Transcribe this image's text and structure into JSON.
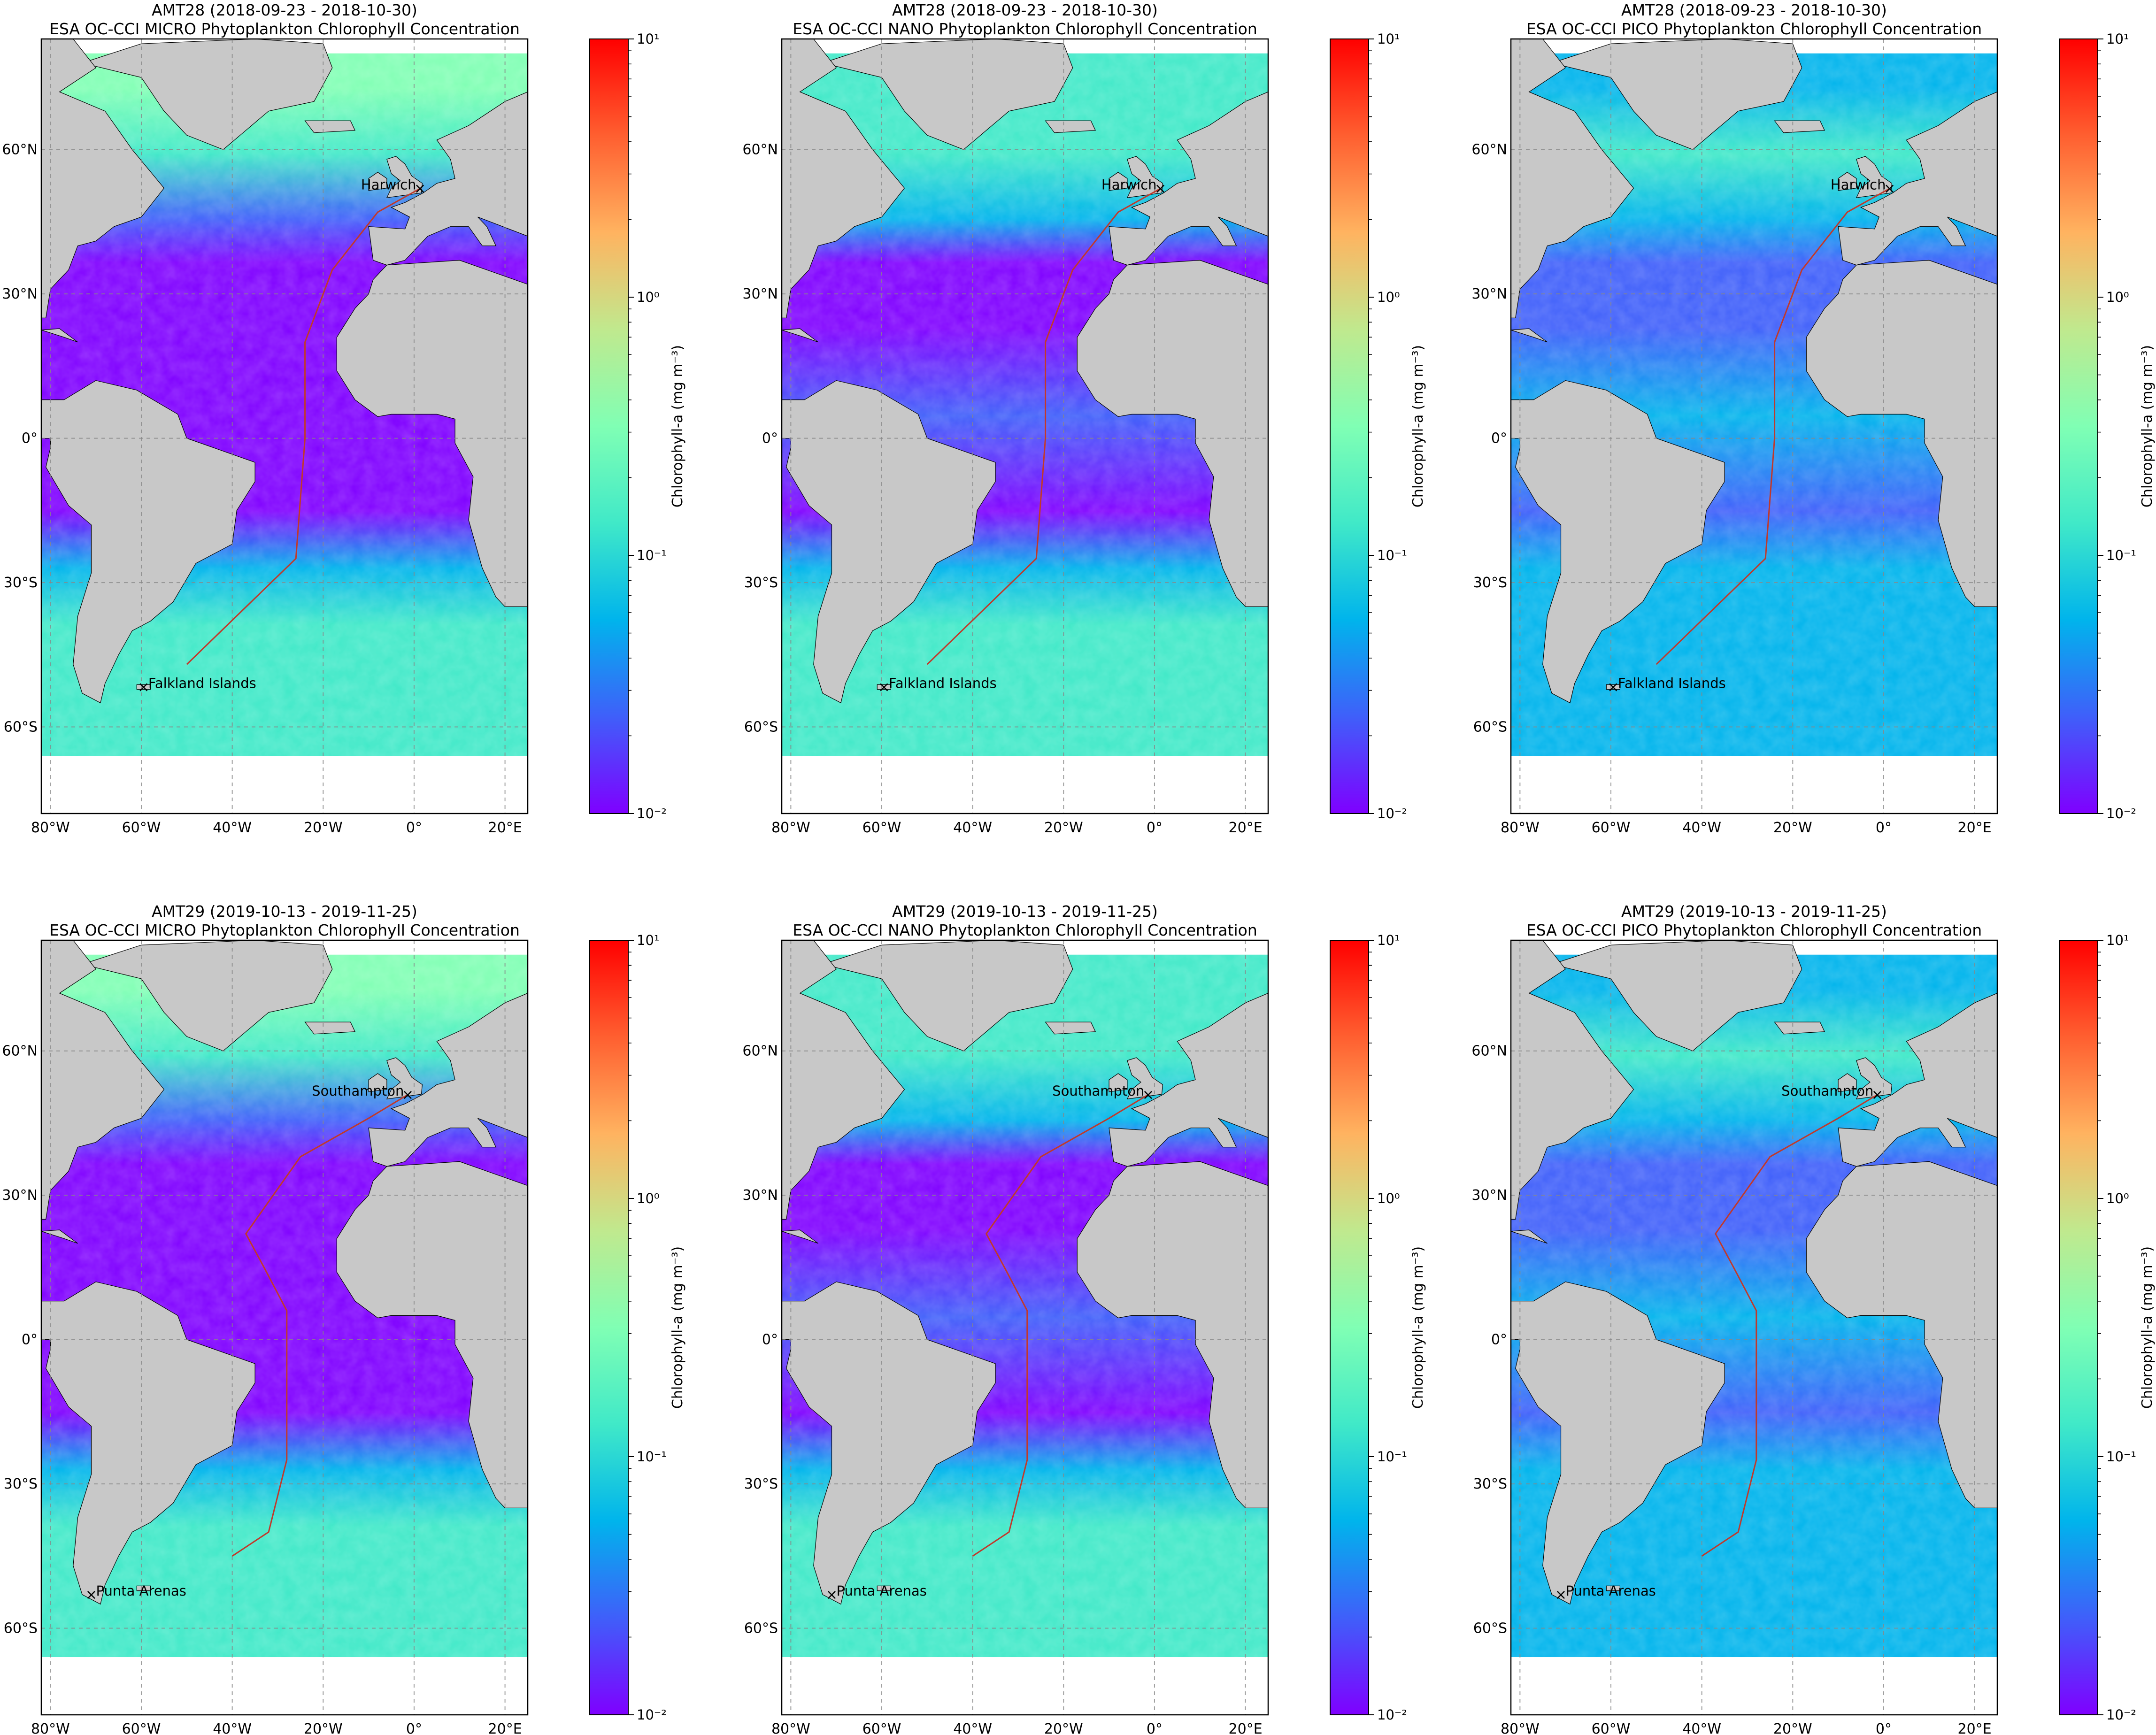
{
  "figure": {
    "colorbar_label": "Chlorophyll-a (mg m⁻³)",
    "colorbar_ticks": [
      "10⁻²",
      "10⁻¹",
      "10⁰",
      "10¹"
    ],
    "lon_ticks": [
      "80°W",
      "60°W",
      "40°W",
      "20°W",
      "0°",
      "20°E"
    ],
    "lat_ticks": [
      "60°N",
      "30°N",
      "0°",
      "30°S",
      "60°S"
    ],
    "colormap": [
      "#7f00ff",
      "#3f5ffa",
      "#00b4ec",
      "#40e9c8",
      "#80ffb4",
      "#c0e98e",
      "#ffb360",
      "#ff5f30",
      "#ff0000"
    ],
    "land_color": "#c8c8c8",
    "panels": [
      {
        "title_line1": "AMT28 (2018-09-23 - 2018-10-30)",
        "title_line2": "ESA OC-CCI MICRO Phytoplankton Chlorophyll Concentration",
        "size_class": "MICRO",
        "cruise": "AMT28",
        "port_north": "Harwich",
        "port_south": "Falkland Islands",
        "route": [
          [
            1.3,
            51.9
          ],
          [
            -8,
            47
          ],
          [
            -18,
            35
          ],
          [
            -24,
            20
          ],
          [
            -24,
            0
          ],
          [
            -26,
            -25
          ],
          [
            -50,
            -47
          ]
        ]
      },
      {
        "title_line1": "AMT28 (2018-09-23 - 2018-10-30)",
        "title_line2": "ESA OC-CCI NANO Phytoplankton Chlorophyll Concentration",
        "size_class": "NANO",
        "cruise": "AMT28",
        "port_north": "Harwich",
        "port_south": "Falkland Islands",
        "route": [
          [
            1.3,
            51.9
          ],
          [
            -8,
            47
          ],
          [
            -18,
            35
          ],
          [
            -24,
            20
          ],
          [
            -24,
            0
          ],
          [
            -26,
            -25
          ],
          [
            -50,
            -47
          ]
        ]
      },
      {
        "title_line1": "AMT28 (2018-09-23 - 2018-10-30)",
        "title_line2": "ESA OC-CCI PICO Phytoplankton Chlorophyll Concentration",
        "size_class": "PICO",
        "cruise": "AMT28",
        "port_north": "Harwich",
        "port_south": "Falkland Islands",
        "route": [
          [
            1.3,
            51.9
          ],
          [
            -8,
            47
          ],
          [
            -18,
            35
          ],
          [
            -24,
            20
          ],
          [
            -24,
            0
          ],
          [
            -26,
            -25
          ],
          [
            -50,
            -47
          ]
        ]
      },
      {
        "title_line1": "AMT29 (2019-10-13 - 2019-11-25)",
        "title_line2": "ESA OC-CCI MICRO Phytoplankton Chlorophyll Concentration",
        "size_class": "MICRO",
        "cruise": "AMT29",
        "port_north": "Southampton",
        "port_south": "Punta Arenas",
        "route": [
          [
            -1.4,
            50.9
          ],
          [
            -10,
            46
          ],
          [
            -25,
            38
          ],
          [
            -37,
            22
          ],
          [
            -33,
            15
          ],
          [
            -28,
            6
          ],
          [
            -28,
            -25
          ],
          [
            -32,
            -40
          ],
          [
            -40,
            -45
          ]
        ]
      },
      {
        "title_line1": "AMT29 (2019-10-13 - 2019-11-25)",
        "title_line2": "ESA OC-CCI NANO Phytoplankton Chlorophyll Concentration",
        "size_class": "NANO",
        "cruise": "AMT29",
        "port_north": "Southampton",
        "port_south": "Punta Arenas",
        "route": [
          [
            -1.4,
            50.9
          ],
          [
            -10,
            46
          ],
          [
            -25,
            38
          ],
          [
            -37,
            22
          ],
          [
            -33,
            15
          ],
          [
            -28,
            6
          ],
          [
            -28,
            -25
          ],
          [
            -32,
            -40
          ],
          [
            -40,
            -45
          ]
        ]
      },
      {
        "title_line1": "AMT29 (2019-10-13 - 2019-11-25)",
        "title_line2": "ESA OC-CCI PICO Phytoplankton Chlorophyll Concentration",
        "size_class": "PICO",
        "cruise": "AMT29",
        "port_north": "Southampton",
        "port_south": "Punta Arenas",
        "route": [
          [
            -1.4,
            50.9
          ],
          [
            -10,
            46
          ],
          [
            -25,
            38
          ],
          [
            -37,
            22
          ],
          [
            -33,
            15
          ],
          [
            -28,
            6
          ],
          [
            -28,
            -25
          ],
          [
            -32,
            -40
          ],
          [
            -40,
            -45
          ]
        ]
      }
    ]
  },
  "chart_data": [
    {
      "type": "heatmap",
      "title": "AMT28 (2018-09-23 - 2018-10-30) ESA OC-CCI MICRO Phytoplankton Chlorophyll Concentration",
      "xlim": [
        -82,
        25
      ],
      "ylim": [
        -78,
        83
      ],
      "colorbar": {
        "label": "Chlorophyll-a (mg m^-3)",
        "scale": "log",
        "range": [
          0.01,
          10
        ]
      },
      "annotations": [
        "Harwich",
        "Falkland Islands"
      ]
    },
    {
      "type": "heatmap",
      "title": "AMT28 (2018-09-23 - 2018-10-30) ESA OC-CCI NANO Phytoplankton Chlorophyll Concentration",
      "xlim": [
        -82,
        25
      ],
      "ylim": [
        -78,
        83
      ],
      "colorbar": {
        "label": "Chlorophyll-a (mg m^-3)",
        "scale": "log",
        "range": [
          0.01,
          10
        ]
      },
      "annotations": [
        "Harwich",
        "Falkland Islands"
      ]
    },
    {
      "type": "heatmap",
      "title": "AMT28 (2018-09-23 - 2018-10-30) ESA OC-CCI PICO Phytoplankton Chlorophyll Concentration",
      "xlim": [
        -82,
        25
      ],
      "ylim": [
        -78,
        83
      ],
      "colorbar": {
        "label": "Chlorophyll-a (mg m^-3)",
        "scale": "log",
        "range": [
          0.01,
          10
        ]
      },
      "annotations": [
        "Harwich",
        "Falkland Islands"
      ]
    },
    {
      "type": "heatmap",
      "title": "AMT29 (2019-10-13 - 2019-11-25) ESA OC-CCI MICRO Phytoplankton Chlorophyll Concentration",
      "xlim": [
        -82,
        25
      ],
      "ylim": [
        -78,
        83
      ],
      "colorbar": {
        "label": "Chlorophyll-a (mg m^-3)",
        "scale": "log",
        "range": [
          0.01,
          10
        ]
      },
      "annotations": [
        "Southampton",
        "Punta Arenas"
      ]
    },
    {
      "type": "heatmap",
      "title": "AMT29 (2019-10-13 - 2019-11-25) ESA OC-CCI NANO Phytoplankton Chlorophyll Concentration",
      "xlim": [
        -82,
        25
      ],
      "ylim": [
        -78,
        83
      ],
      "colorbar": {
        "label": "Chlorophyll-a (mg m^-3)",
        "scale": "log",
        "range": [
          0.01,
          10
        ]
      },
      "annotations": [
        "Southampton",
        "Punta Arenas"
      ]
    },
    {
      "type": "heatmap",
      "title": "AMT29 (2019-10-13 - 2019-11-25) ESA OC-CCI PICO Phytoplankton Chlorophyll Concentration",
      "xlim": [
        -82,
        25
      ],
      "ylim": [
        -78,
        83
      ],
      "colorbar": {
        "label": "Chlorophyll-a (mg m^-3)",
        "scale": "log",
        "range": [
          0.01,
          10
        ]
      },
      "annotations": [
        "Southampton",
        "Punta Arenas"
      ]
    }
  ]
}
